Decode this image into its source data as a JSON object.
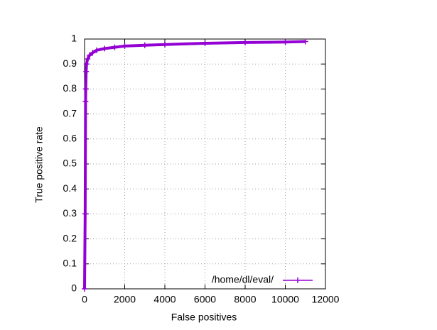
{
  "chart_data": {
    "type": "line",
    "xlabel": "False positives",
    "ylabel": "True positive rate",
    "xlim": [
      0,
      12000
    ],
    "ylim": [
      0,
      1
    ],
    "xticks": [
      0,
      2000,
      4000,
      6000,
      8000,
      10000,
      12000
    ],
    "yticks": [
      0,
      0.1,
      0.2,
      0.3,
      0.4,
      0.5,
      0.6,
      0.7,
      0.8,
      0.9,
      1
    ],
    "grid": true,
    "legend": "bottom-right",
    "series": [
      {
        "name": "/home/dl/eval/",
        "color": "#9400d3",
        "x": [
          0,
          30,
          50,
          60,
          80,
          100,
          150,
          250,
          400,
          600,
          1000,
          1500,
          2000,
          3000,
          4000,
          6000,
          8000,
          10000,
          11000
        ],
        "values": [
          0,
          0.3,
          0.75,
          0.8,
          0.87,
          0.9,
          0.92,
          0.935,
          0.945,
          0.955,
          0.962,
          0.967,
          0.972,
          0.975,
          0.978,
          0.983,
          0.986,
          0.988,
          0.99
        ]
      }
    ]
  }
}
